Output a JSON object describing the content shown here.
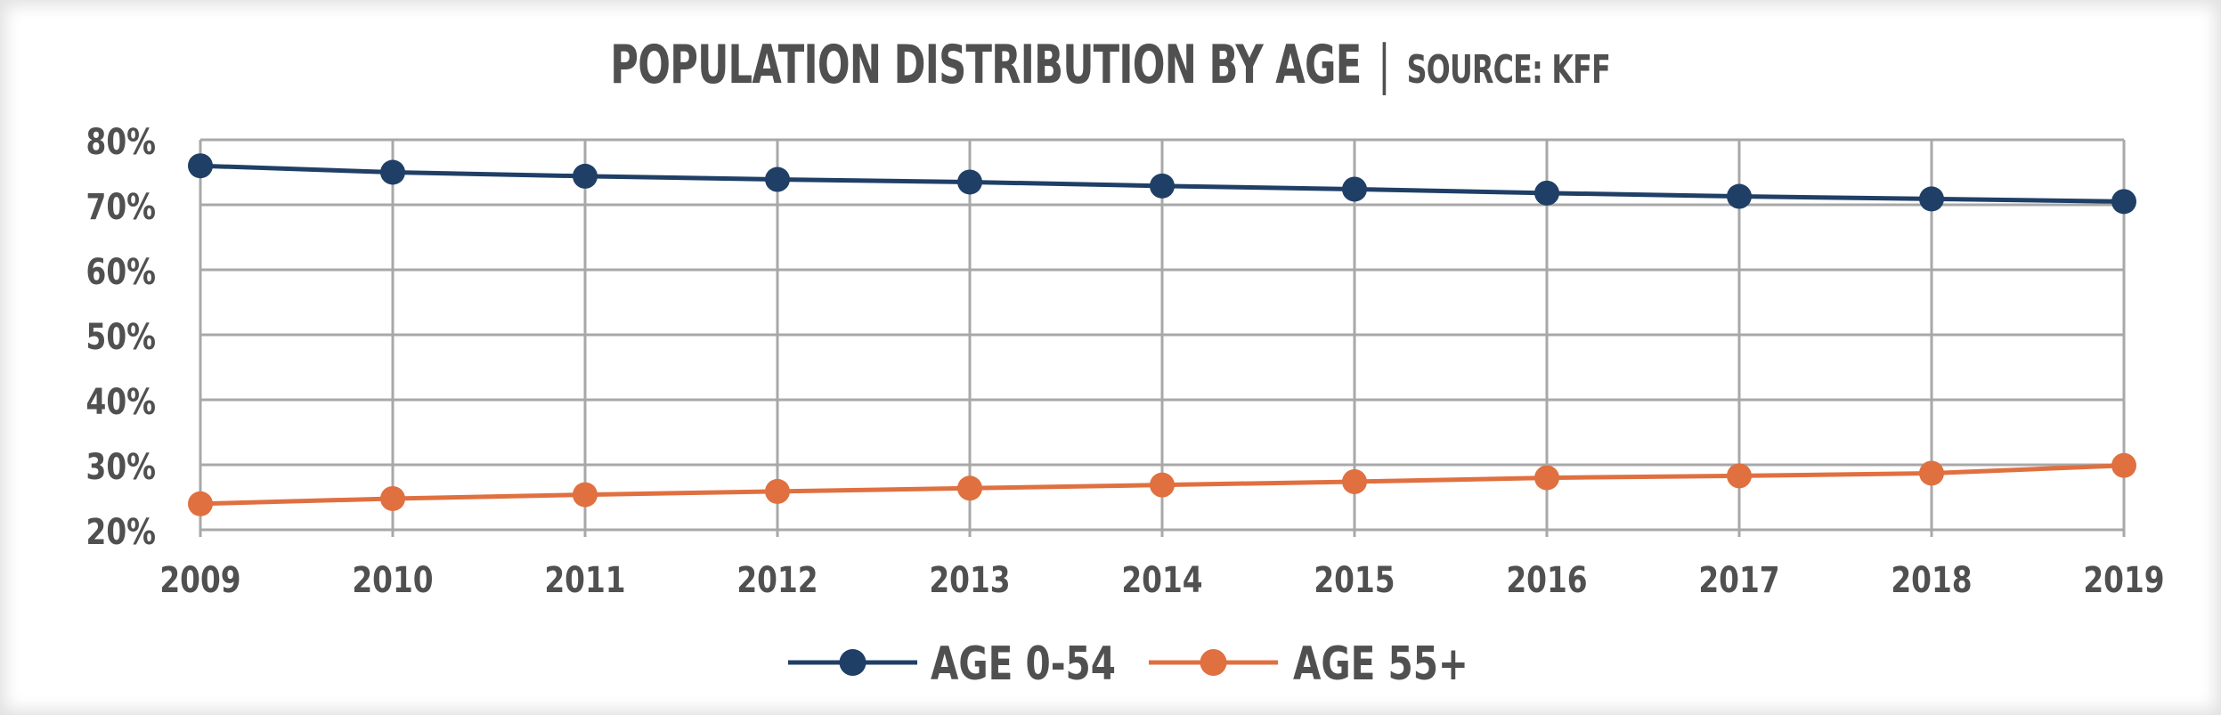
{
  "title_block": {
    "title": "POPULATION DISTRIBUTION BY AGE",
    "separator": "|",
    "source": "SOURCE: KFF"
  },
  "chart_data": {
    "type": "line",
    "title": "POPULATION DISTRIBUTION BY AGE | SOURCE: KFF",
    "xlabel": "",
    "ylabel": "",
    "x": [
      "2009",
      "2010",
      "2011",
      "2012",
      "2013",
      "2014",
      "2015",
      "2016",
      "2017",
      "2018",
      "2019"
    ],
    "ylim": [
      20,
      80
    ],
    "yticks": [
      20,
      30,
      40,
      50,
      60,
      70,
      80
    ],
    "ytick_labels": [
      "20%",
      "30%",
      "40%",
      "50%",
      "60%",
      "70%",
      "80%"
    ],
    "grid": true,
    "legend_position": "bottom-center",
    "series": [
      {
        "name": "AGE 0-54",
        "color": "#1f3f66",
        "values": [
          76,
          75,
          74.4,
          73.9,
          73.5,
          72.9,
          72.4,
          71.8,
          71.3,
          70.9,
          70.5
        ]
      },
      {
        "name": "AGE 55+",
        "color": "#e07040",
        "values": [
          24,
          24.8,
          25.4,
          25.9,
          26.4,
          26.9,
          27.4,
          28.0,
          28.3,
          28.7,
          29.9
        ]
      }
    ]
  }
}
